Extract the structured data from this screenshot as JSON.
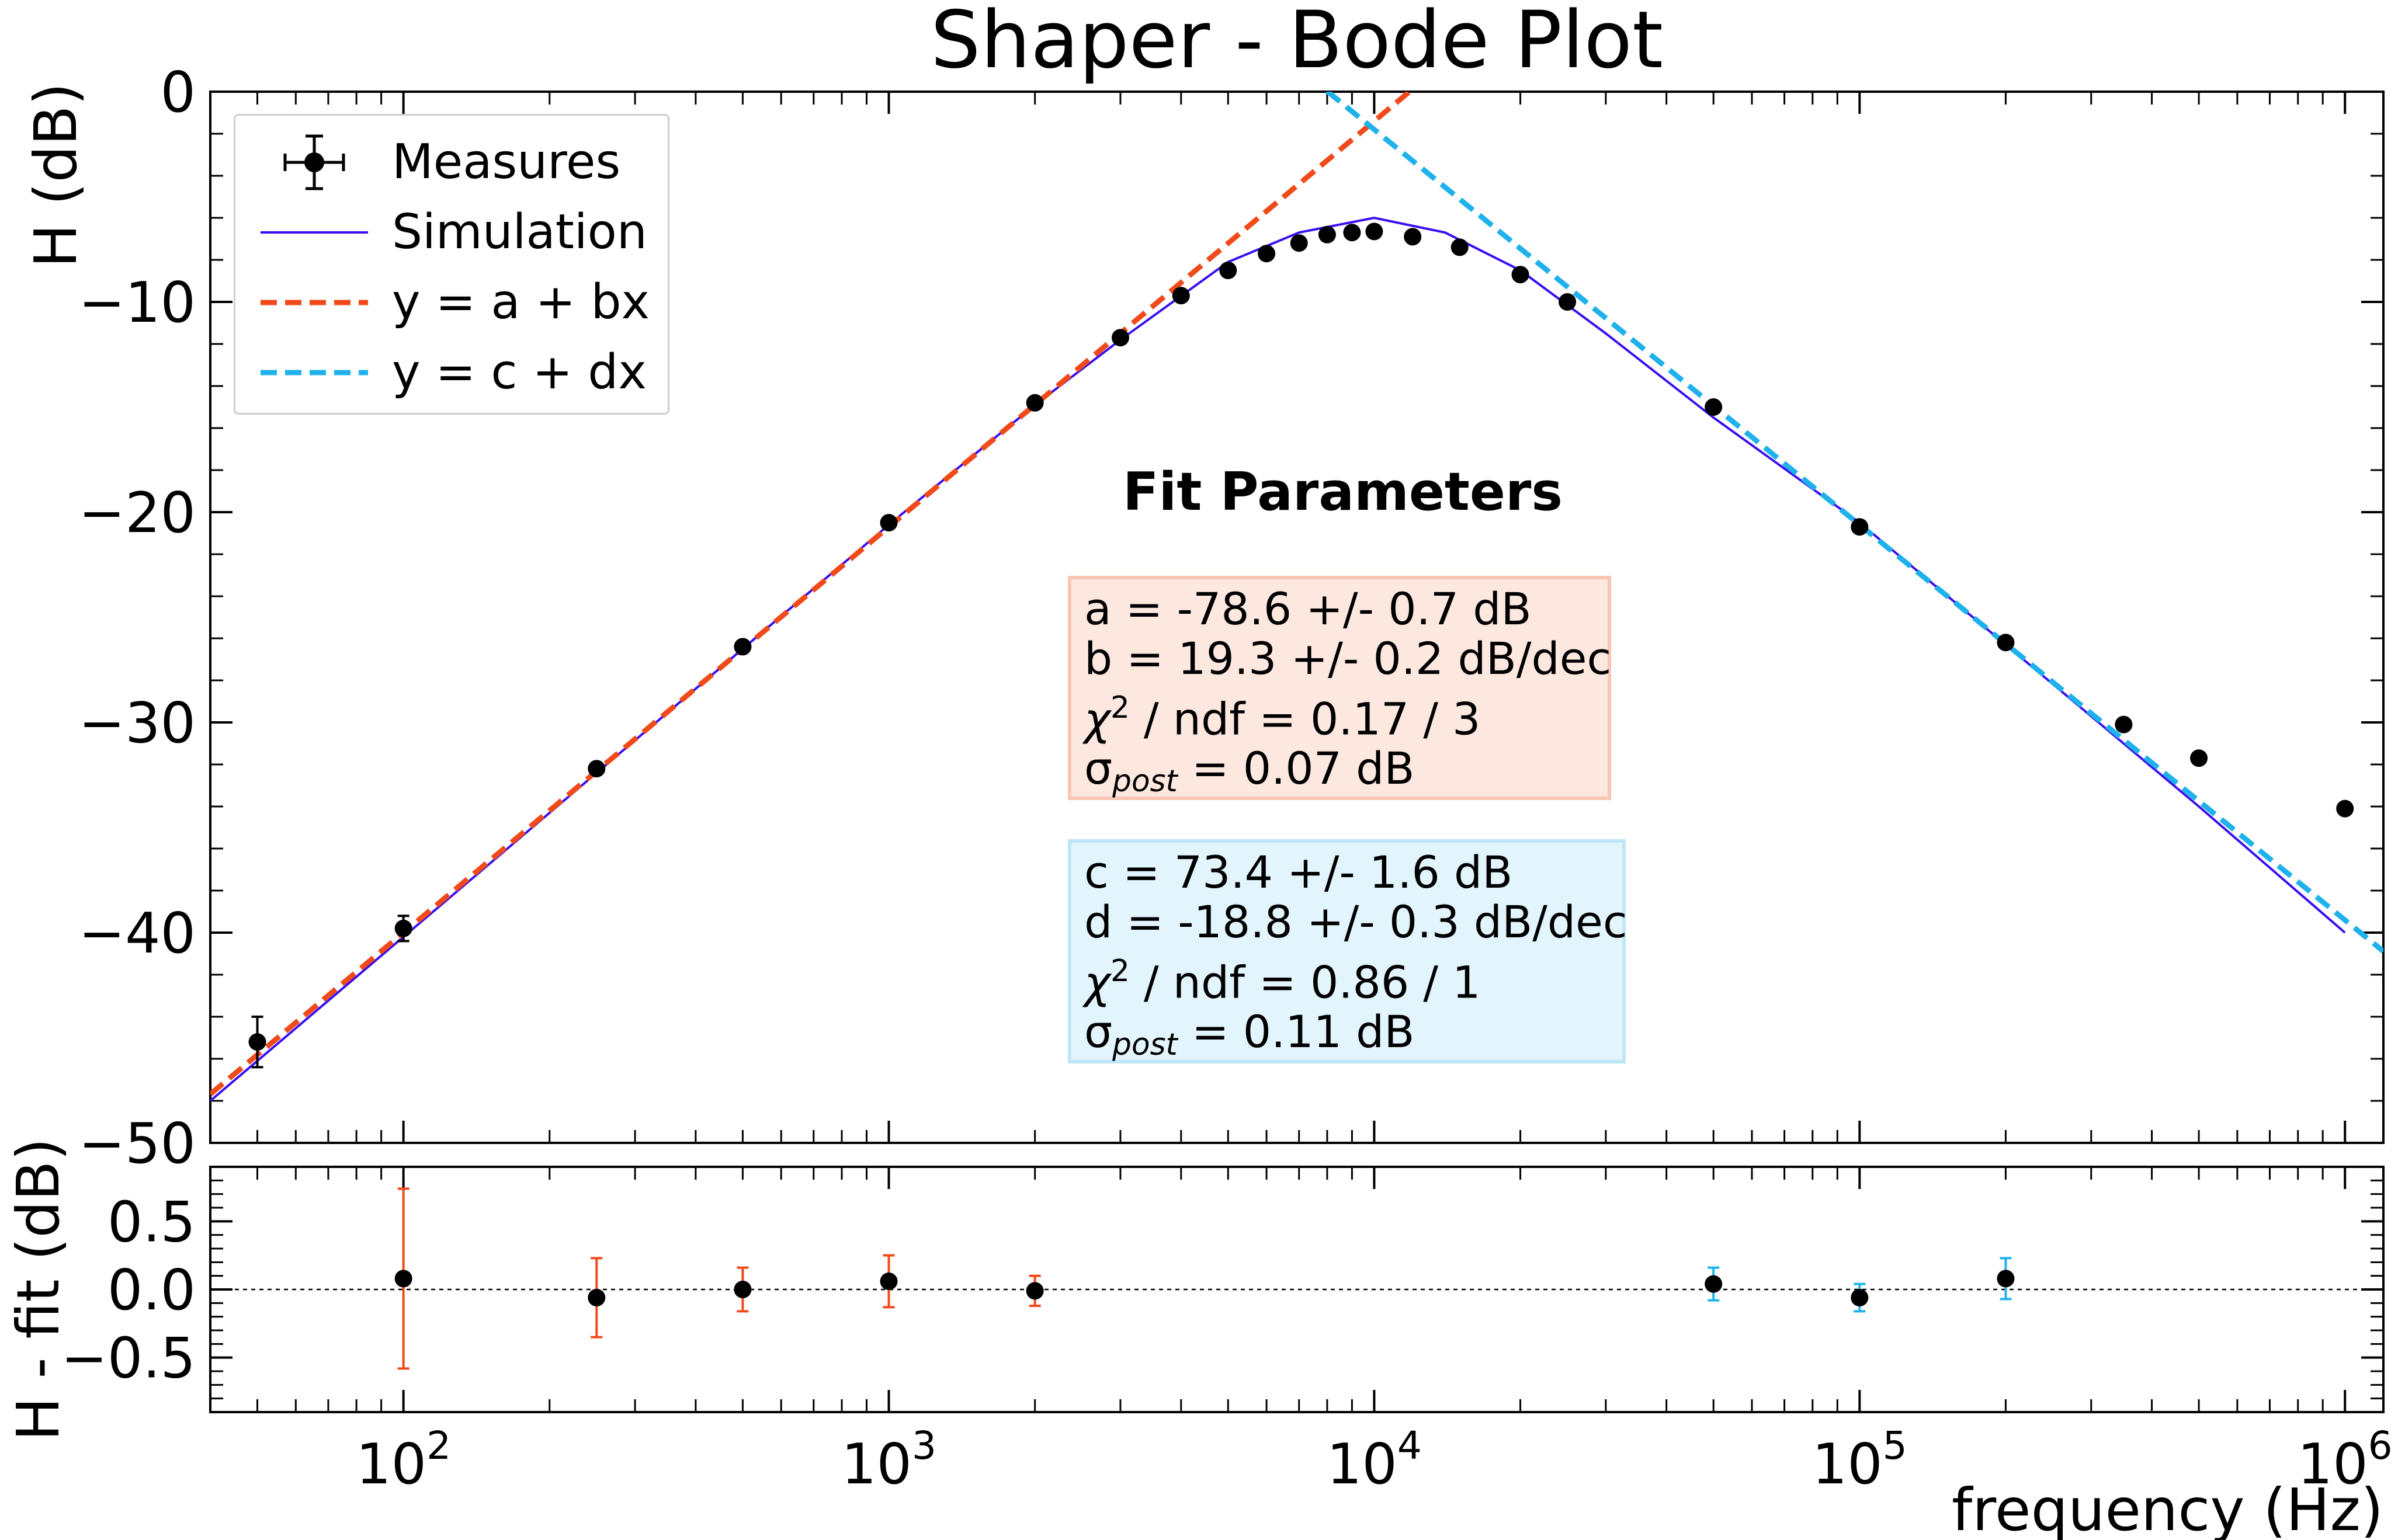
{
  "title": "Shaper - Bode Plot",
  "colors": {
    "measures": "#000000",
    "simulation": "#3a0ef0",
    "fit_low": "#f04a1a",
    "fit_high": "#1fb1ec",
    "box_low_bg": "#fde8e0",
    "box_high_bg": "#e2f4fc"
  },
  "legend": {
    "position": "top-left",
    "items": [
      {
        "label": "Measures",
        "key": "errorbar-point"
      },
      {
        "label": "Simulation",
        "key": "solid-line"
      },
      {
        "label": "y = a + bx",
        "key": "dashed-orange"
      },
      {
        "label": "y = c + dx",
        "key": "dashed-blue"
      }
    ]
  },
  "fit_box": {
    "title": "Fit Parameters",
    "low": {
      "a": "a = -78.6 +/- 0.7 dB",
      "b": "b = 19.3 +/- 0.2 dB/dec",
      "chi_rest": " / ndf = 0.17 / 3",
      "sigma_rest": " = 0.07 dB"
    },
    "high": {
      "c": "c = 73.4 +/- 1.6 dB",
      "d": "d = -18.8 +/- 0.3 dB/dec",
      "chi_rest": " / ndf = 0.86 / 1",
      "sigma_rest": " = 0.11 dB"
    },
    "chi_symbol": "χ",
    "chi_exp": "2",
    "sigma_symbol": "σ",
    "sigma_sub": "post"
  },
  "chart_data": [
    {
      "type": "scatter",
      "panel": "main",
      "xscale": "log",
      "xlim": [
        40,
        1200000
      ],
      "ylim": [
        -50,
        0
      ],
      "ylabel": "H (dB)",
      "yticks": [
        "0",
        "−10",
        "−20",
        "−30",
        "−40",
        "−50"
      ],
      "ytick_values": [
        0,
        -10,
        -20,
        -30,
        -40,
        -50
      ],
      "series": [
        {
          "name": "Measures",
          "kind": "points",
          "x": [
            50,
            100,
            250,
            500,
            1000,
            2000,
            3000,
            4000,
            5000,
            6000,
            7000,
            8000,
            9000,
            10000,
            12000,
            15000,
            20000,
            25000,
            50000,
            100000,
            200000,
            350000,
            500000,
            1000000
          ],
          "y": [
            -45.2,
            -39.8,
            -32.2,
            -26.4,
            -20.5,
            -14.8,
            -11.7,
            -9.7,
            -8.5,
            -7.7,
            -7.2,
            -6.8,
            -6.7,
            -6.65,
            -6.9,
            -7.4,
            -8.7,
            -10.0,
            -15.0,
            -20.7,
            -26.2,
            -30.1,
            -31.7,
            -34.1
          ],
          "yerr": [
            1.2,
            0.6,
            0.2,
            0.2,
            0.15,
            0.1,
            0.1,
            0.1,
            0.1,
            0.1,
            0.1,
            0.1,
            0.1,
            0.1,
            0.1,
            0.1,
            0.1,
            0.1,
            0.1,
            0.1,
            0.1,
            0.1,
            0.1,
            0.1
          ]
        },
        {
          "name": "Simulation",
          "kind": "line",
          "x": [
            40,
            100,
            200,
            500,
            1000,
            2000,
            3000,
            5000,
            7000,
            10000,
            14000,
            20000,
            30000,
            50000,
            100000,
            200000,
            500000,
            1000000
          ],
          "y": [
            -48.0,
            -40.2,
            -34.3,
            -26.5,
            -20.6,
            -14.9,
            -11.8,
            -8.1,
            -6.7,
            -6.0,
            -6.7,
            -8.5,
            -11.5,
            -15.5,
            -20.5,
            -26.3,
            -34.0,
            -40.0
          ]
        },
        {
          "name": "y = a + bx",
          "kind": "dashed-line",
          "a": -78.6,
          "b": 19.3,
          "x_range": [
            40,
            12000
          ]
        },
        {
          "name": "y = c + dx",
          "kind": "dashed-line",
          "c": 73.4,
          "d": -18.8,
          "x_range": [
            8000,
            1200000
          ]
        }
      ]
    },
    {
      "type": "scatter",
      "panel": "residuals",
      "xscale": "log",
      "xlim": [
        40,
        1200000
      ],
      "ylim": [
        -0.9,
        0.9
      ],
      "xlabel": "frequency (Hz)",
      "ylabel": "H - fit (dB)",
      "yticks": [
        "0.5",
        "0.0",
        "−0.5"
      ],
      "ytick_values": [
        0.5,
        0,
        -0.5
      ],
      "xticks": [
        {
          "value": 100,
          "base": "10",
          "exp": "2"
        },
        {
          "value": 1000,
          "base": "10",
          "exp": "3"
        },
        {
          "value": 10000,
          "base": "10",
          "exp": "4"
        },
        {
          "value": 100000,
          "base": "10",
          "exp": "5"
        },
        {
          "value": 1000000,
          "base": "10",
          "exp": "6"
        }
      ],
      "series": [
        {
          "name": "residuals a+bx",
          "x": [
            100,
            250,
            500,
            1000,
            2000
          ],
          "y": [
            0.08,
            -0.06,
            0.0,
            0.06,
            -0.01
          ],
          "yerr": [
            0.66,
            0.29,
            0.16,
            0.19,
            0.11
          ]
        },
        {
          "name": "residuals c+dx",
          "x": [
            50000,
            100000,
            200000
          ],
          "y": [
            0.04,
            -0.06,
            0.08
          ],
          "yerr": [
            0.12,
            0.1,
            0.15
          ]
        }
      ]
    }
  ]
}
